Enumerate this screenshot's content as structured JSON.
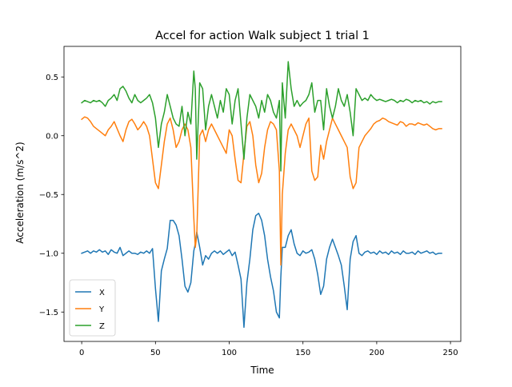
{
  "chart_data": {
    "type": "line",
    "title": "Accel for action Walk subject 1 trial 1",
    "xlabel": "Time",
    "ylabel": "Acceleration (m/s^2)",
    "xlim": [
      -12,
      257
    ],
    "ylim": [
      -1.75,
      0.76
    ],
    "xticks": [
      0,
      50,
      100,
      150,
      200,
      250
    ],
    "yticks": [
      -1.5,
      -1.0,
      -0.5,
      0.0,
      0.5
    ],
    "ytick_labels": [
      "−1.5",
      "−1.0",
      "−0.5",
      "0.0",
      "0.5"
    ],
    "grid": false,
    "legend_position": "lower-left",
    "x": [
      0,
      2,
      4,
      6,
      8,
      10,
      12,
      14,
      16,
      18,
      20,
      22,
      24,
      26,
      28,
      30,
      32,
      34,
      36,
      38,
      40,
      42,
      44,
      46,
      48,
      50,
      52,
      54,
      56,
      58,
      60,
      62,
      64,
      66,
      68,
      70,
      72,
      74,
      76,
      77,
      78,
      80,
      82,
      84,
      86,
      88,
      90,
      92,
      94,
      96,
      98,
      100,
      102,
      104,
      106,
      108,
      110,
      112,
      114,
      116,
      118,
      120,
      122,
      124,
      126,
      128,
      130,
      132,
      134,
      135,
      136,
      138,
      140,
      142,
      144,
      146,
      148,
      150,
      152,
      154,
      156,
      158,
      160,
      162,
      164,
      166,
      168,
      170,
      172,
      174,
      176,
      178,
      180,
      182,
      184,
      186,
      188,
      190,
      192,
      194,
      196,
      198,
      200,
      202,
      204,
      206,
      208,
      210,
      212,
      214,
      216,
      218,
      220,
      222,
      224,
      226,
      228,
      230,
      232,
      234,
      236,
      238,
      240,
      242,
      244
    ],
    "series": [
      {
        "name": "X",
        "color": "#1f77b4",
        "values": [
          -1.0,
          -0.99,
          -0.98,
          -1.0,
          -0.98,
          -0.99,
          -0.97,
          -0.99,
          -0.98,
          -1.01,
          -0.97,
          -0.99,
          -1.0,
          -0.95,
          -1.02,
          -1.0,
          -0.98,
          -1.0,
          -1.0,
          -1.01,
          -0.99,
          -1.0,
          -0.98,
          -1.0,
          -0.96,
          -1.3,
          -1.58,
          -1.15,
          -1.05,
          -0.96,
          -0.72,
          -0.72,
          -0.76,
          -0.85,
          -1.05,
          -1.28,
          -1.33,
          -1.25,
          -0.98,
          -0.92,
          -0.82,
          -0.95,
          -1.1,
          -1.02,
          -1.05,
          -1.0,
          -0.98,
          -1.0,
          -0.98,
          -1.01,
          -0.99,
          -0.97,
          -1.02,
          -0.99,
          -1.1,
          -1.22,
          -1.63,
          -1.25,
          -1.05,
          -0.8,
          -0.68,
          -0.66,
          -0.72,
          -0.85,
          -1.05,
          -1.2,
          -1.32,
          -1.5,
          -1.55,
          -1.2,
          -0.95,
          -0.95,
          -0.85,
          -0.8,
          -0.92,
          -1.0,
          -1.02,
          -0.98,
          -1.0,
          -0.99,
          -0.97,
          -1.05,
          -1.18,
          -1.35,
          -1.28,
          -1.05,
          -0.95,
          -0.88,
          -0.95,
          -1.02,
          -1.1,
          -1.28,
          -1.48,
          -1.05,
          -0.9,
          -0.85,
          -1.0,
          -1.02,
          -0.99,
          -0.98,
          -1.0,
          -0.99,
          -1.01,
          -0.98,
          -1.0,
          -0.99,
          -1.01,
          -0.98,
          -1.0,
          -0.99,
          -1.01,
          -0.98,
          -1.0,
          -1.0,
          -0.99,
          -1.01,
          -0.98,
          -1.0,
          -0.99,
          -0.98,
          -1.0,
          -0.99,
          -1.01,
          -1.0,
          -1.0
        ]
      },
      {
        "name": "Y",
        "color": "#ff7f0e",
        "values": [
          0.14,
          0.16,
          0.15,
          0.12,
          0.08,
          0.06,
          0.04,
          0.02,
          0.0,
          0.05,
          0.08,
          0.12,
          0.06,
          0.0,
          -0.05,
          0.05,
          0.12,
          0.14,
          0.1,
          0.05,
          0.08,
          0.12,
          0.08,
          0.0,
          -0.2,
          -0.4,
          -0.45,
          -0.25,
          -0.05,
          0.1,
          0.15,
          0.05,
          -0.1,
          -0.05,
          0.05,
          0.1,
          0.05,
          -0.1,
          -0.7,
          -0.95,
          -0.85,
          0.0,
          0.05,
          -0.05,
          0.05,
          0.1,
          0.05,
          0.0,
          -0.05,
          -0.1,
          -0.15,
          0.05,
          0.0,
          -0.2,
          -0.38,
          -0.4,
          -0.15,
          0.08,
          0.12,
          0.0,
          -0.25,
          -0.4,
          -0.32,
          -0.1,
          0.05,
          0.12,
          0.1,
          0.05,
          -0.3,
          -1.1,
          -0.5,
          -0.15,
          0.05,
          0.1,
          0.05,
          0.0,
          -0.1,
          0.0,
          0.1,
          0.15,
          -0.3,
          -0.38,
          -0.35,
          -0.08,
          -0.2,
          -0.05,
          0.05,
          0.15,
          0.1,
          0.05,
          0.0,
          -0.05,
          -0.1,
          -0.35,
          -0.45,
          -0.4,
          -0.1,
          -0.05,
          0.0,
          0.03,
          0.06,
          0.1,
          0.12,
          0.13,
          0.15,
          0.14,
          0.12,
          0.11,
          0.1,
          0.09,
          0.12,
          0.11,
          0.08,
          0.1,
          0.1,
          0.09,
          0.11,
          0.1,
          0.09,
          0.1,
          0.08,
          0.06,
          0.05,
          0.06,
          0.06
        ]
      },
      {
        "name": "Z",
        "color": "#2ca02c",
        "values": [
          0.28,
          0.3,
          0.29,
          0.28,
          0.3,
          0.29,
          0.3,
          0.28,
          0.25,
          0.3,
          0.32,
          0.35,
          0.3,
          0.4,
          0.42,
          0.38,
          0.32,
          0.28,
          0.35,
          0.3,
          0.28,
          0.3,
          0.32,
          0.35,
          0.28,
          0.15,
          -0.1,
          0.1,
          0.2,
          0.35,
          0.25,
          0.15,
          0.1,
          0.08,
          0.25,
          0.0,
          0.2,
          0.1,
          0.55,
          0.4,
          -0.2,
          0.45,
          0.4,
          0.05,
          0.25,
          0.35,
          0.25,
          0.15,
          0.3,
          0.2,
          0.4,
          0.35,
          0.1,
          0.3,
          0.4,
          0.1,
          -0.2,
          0.15,
          0.35,
          0.3,
          0.25,
          0.15,
          0.3,
          0.2,
          0.35,
          0.3,
          0.2,
          0.15,
          0.3,
          -0.3,
          0.45,
          0.15,
          0.63,
          0.4,
          0.25,
          0.3,
          0.25,
          0.28,
          0.3,
          0.35,
          0.45,
          0.2,
          0.3,
          0.3,
          0.05,
          0.4,
          0.25,
          0.15,
          0.25,
          0.4,
          0.3,
          0.25,
          0.35,
          0.2,
          0.0,
          0.4,
          0.35,
          0.3,
          0.32,
          0.3,
          0.35,
          0.32,
          0.3,
          0.31,
          0.3,
          0.29,
          0.3,
          0.31,
          0.3,
          0.28,
          0.3,
          0.29,
          0.31,
          0.3,
          0.28,
          0.3,
          0.29,
          0.3,
          0.28,
          0.29,
          0.27,
          0.29,
          0.28,
          0.29,
          0.29
        ]
      }
    ]
  }
}
